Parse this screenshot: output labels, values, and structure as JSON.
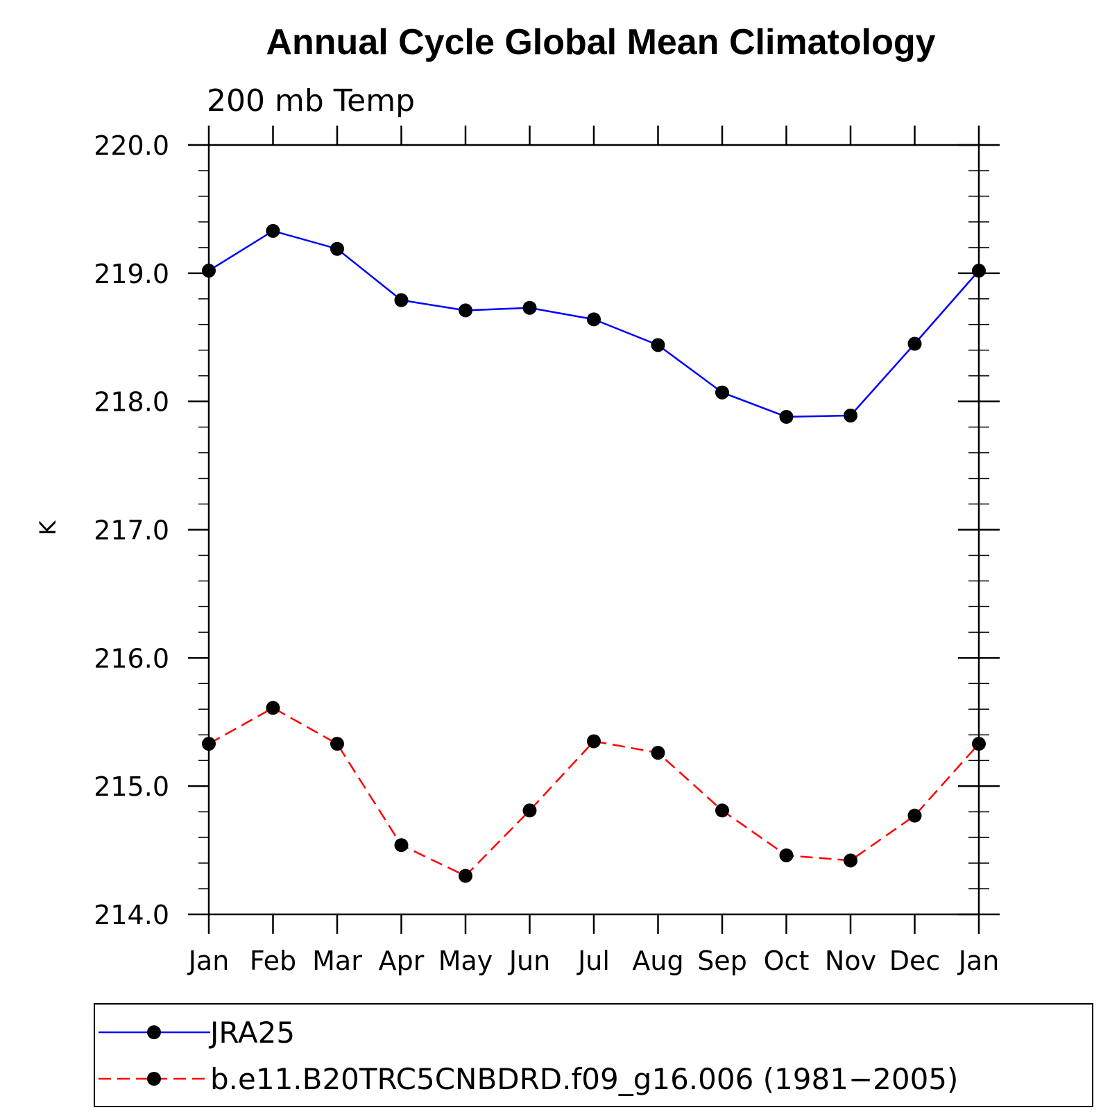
{
  "chart_data": {
    "type": "line",
    "title": "Annual Cycle Global Mean Climatology",
    "subtitle": "200 mb Temp",
    "xlabel": "",
    "ylabel": "K",
    "categories": [
      "Jan",
      "Feb",
      "Mar",
      "Apr",
      "May",
      "Jun",
      "Jul",
      "Aug",
      "Sep",
      "Oct",
      "Nov",
      "Dec",
      "Jan"
    ],
    "ylim": [
      214.0,
      220.0
    ],
    "yticks": [
      "214.0",
      "215.0",
      "216.0",
      "217.0",
      "218.0",
      "219.0",
      "220.0"
    ],
    "legend_position": "bottom",
    "series": [
      {
        "name": "JRA25",
        "color": "#0000ff",
        "dash": "solid",
        "values": [
          219.02,
          219.33,
          219.19,
          218.79,
          218.71,
          218.73,
          218.64,
          218.44,
          218.07,
          217.88,
          217.89,
          218.45,
          219.02
        ]
      },
      {
        "name": "b.e11.B20TRC5CNBDRD.f09_g16.006 (1981−2005)",
        "color": "#ff0000",
        "dash": "dashed",
        "values": [
          215.33,
          215.61,
          215.33,
          214.54,
          214.3,
          214.81,
          215.35,
          215.26,
          214.81,
          214.46,
          214.42,
          214.77,
          215.33
        ]
      }
    ]
  }
}
